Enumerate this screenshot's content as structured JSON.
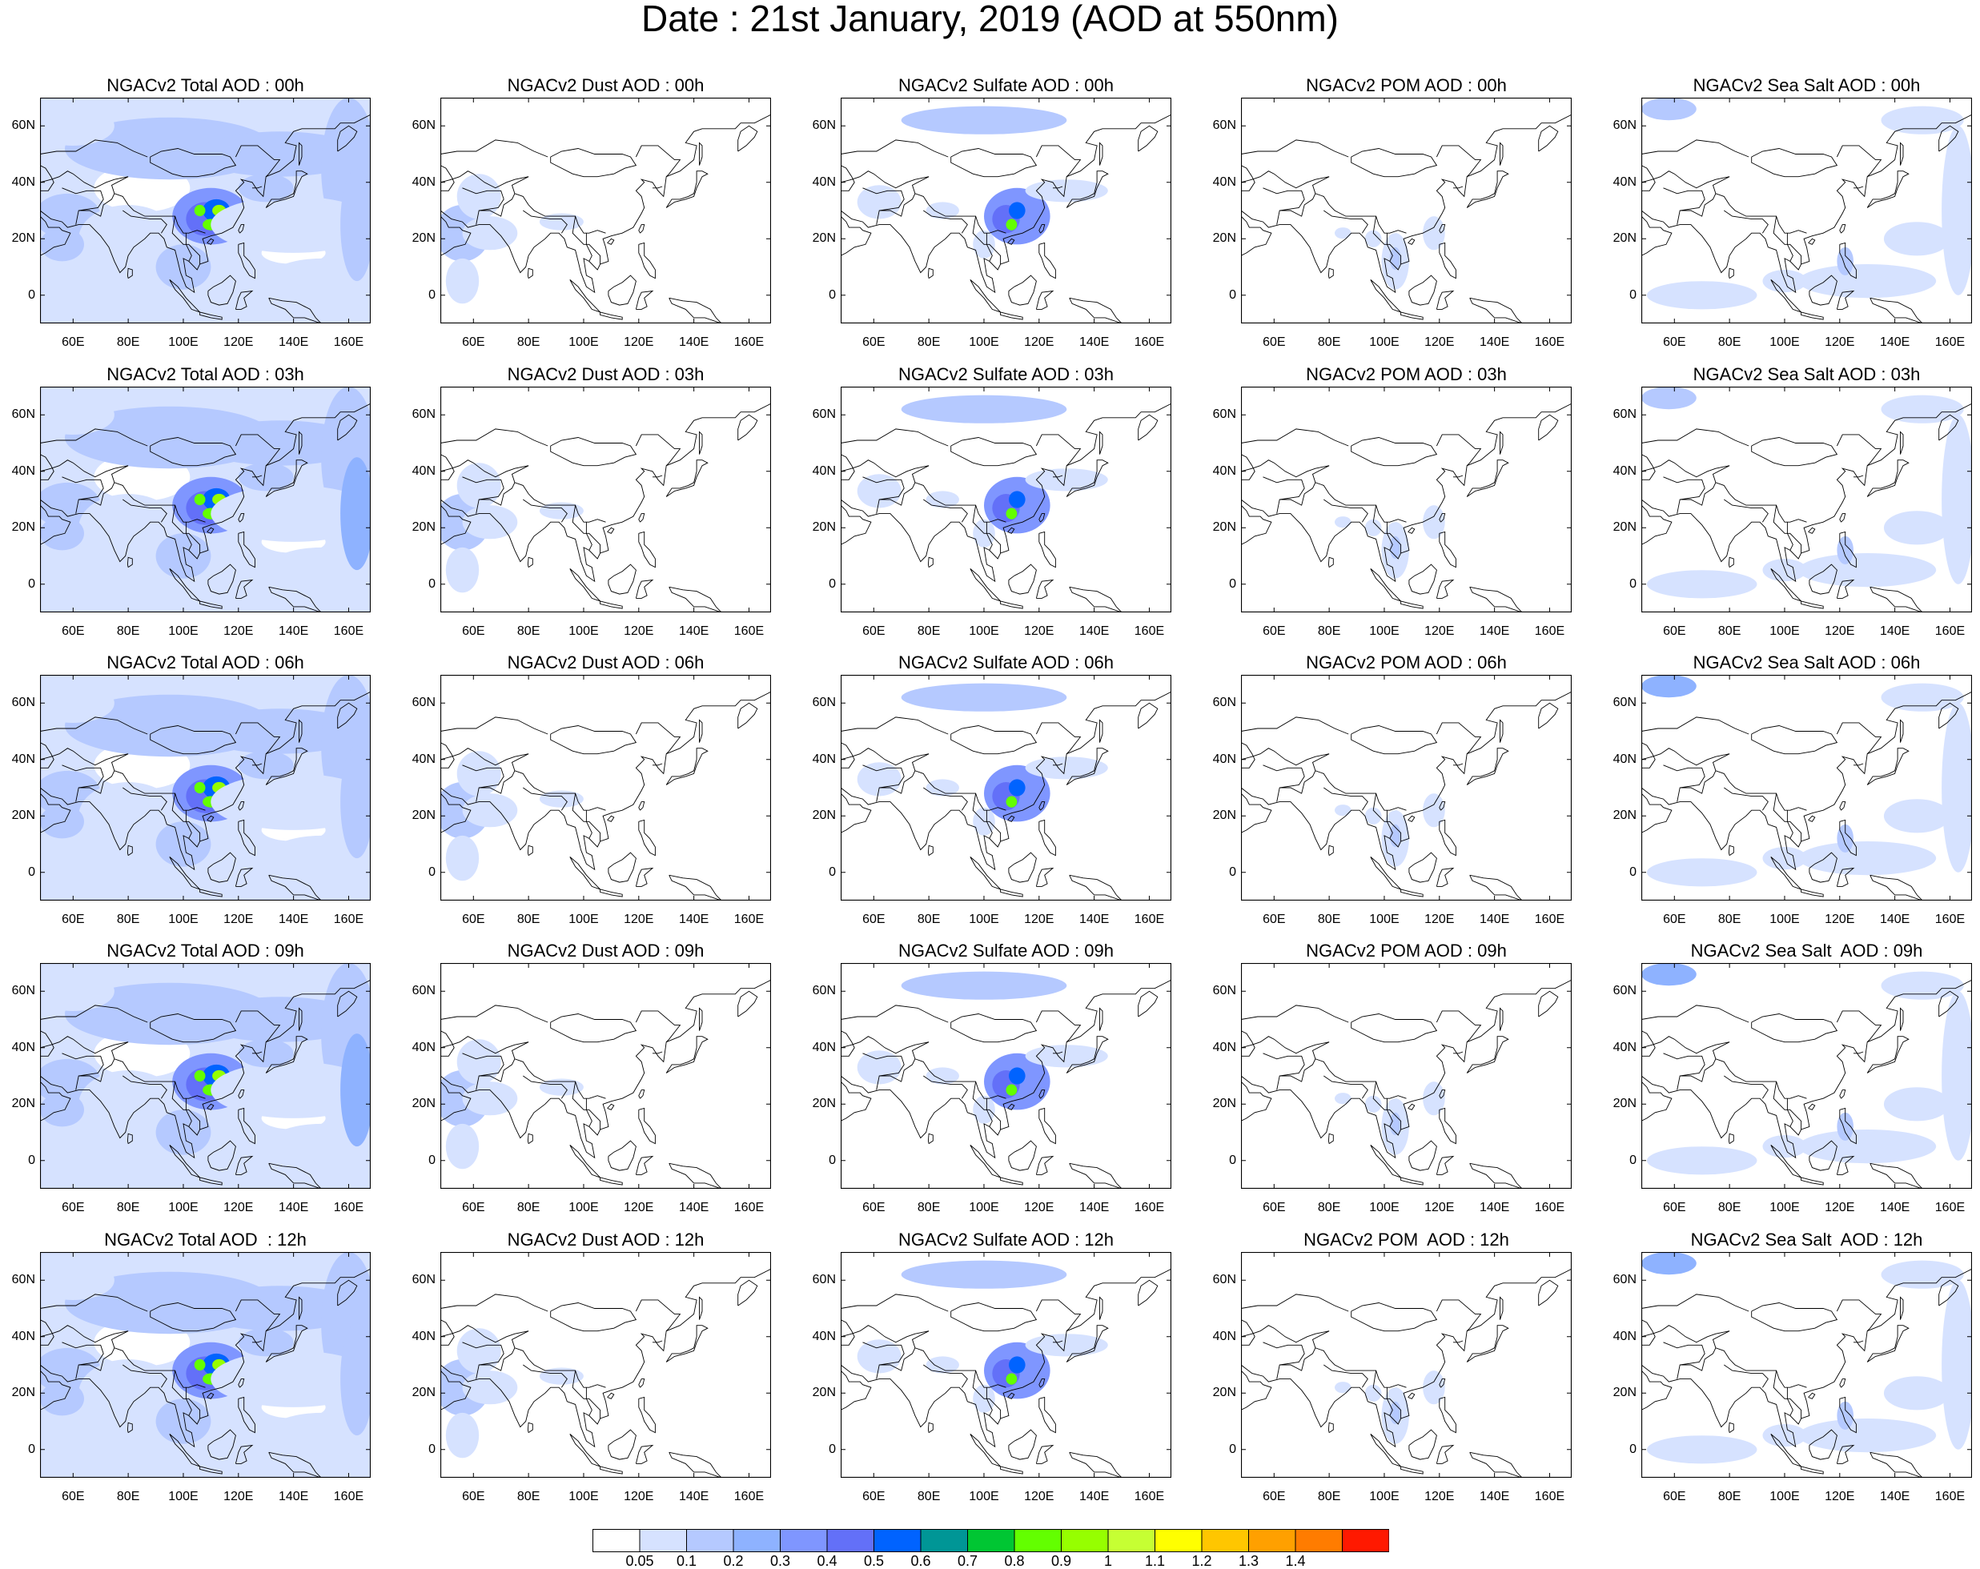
{
  "title": "Date : 21st January, 2019 (AOD at 550nm)",
  "panel_titles": [
    [
      "NGACv2 Total AOD : 00h",
      "NGACv2 Dust AOD : 00h",
      "NGACv2 Sulfate AOD : 00h",
      "NGACv2 POM AOD : 00h",
      "NGACv2 Sea Salt AOD : 00h"
    ],
    [
      "NGACv2 Total AOD : 03h",
      "NGACv2 Dust AOD : 03h",
      "NGACv2 Sulfate AOD : 03h",
      "NGACv2 POM AOD : 03h",
      "NGACv2 Sea Salt AOD : 03h"
    ],
    [
      "NGACv2 Total AOD : 06h",
      "NGACv2 Dust AOD : 06h",
      "NGACv2 Sulfate AOD : 06h",
      "NGACv2 POM AOD : 06h",
      "NGACv2 Sea Salt AOD : 06h"
    ],
    [
      "NGACv2 Total AOD : 09h",
      "NGACv2 Dust AOD : 09h",
      "NGACv2 Sulfate AOD : 09h",
      "NGACv2 POM AOD : 09h",
      "NGACv2 Sea Salt  AOD : 09h"
    ],
    [
      "NGACv2 Total AOD  : 12h",
      "NGACv2 Dust AOD : 12h",
      "NGACv2 Sulfate AOD : 12h",
      "NGACv2 POM  AOD : 12h",
      "NGACv2 Sea Salt  AOD : 12h"
    ]
  ],
  "map_extent": {
    "lon": [
      48,
      168
    ],
    "lat": [
      -10,
      70
    ]
  },
  "lat_ticks": [
    {
      "value": 60,
      "label": "60N"
    },
    {
      "value": 40,
      "label": "40N"
    },
    {
      "value": 20,
      "label": "20N"
    },
    {
      "value": 0,
      "label": "0"
    }
  ],
  "lon_ticks": [
    {
      "value": 60,
      "label": "60E"
    },
    {
      "value": 80,
      "label": "80E"
    },
    {
      "value": 100,
      "label": "100E"
    },
    {
      "value": 120,
      "label": "120E"
    },
    {
      "value": 140,
      "label": "140E"
    },
    {
      "value": 160,
      "label": "160E"
    }
  ],
  "colorbar": {
    "labels": [
      "0.05",
      "0.1",
      "0.2",
      "0.3",
      "0.4",
      "0.5",
      "0.6",
      "0.7",
      "0.8",
      "0.9",
      "1",
      "1.1",
      "1.2",
      "1.3",
      "1.4"
    ],
    "colors": [
      "#ffffff",
      "#d6e2ff",
      "#b5c9ff",
      "#8eb2ff",
      "#7f96ff",
      "#6370f8",
      "#0063ff",
      "#009696",
      "#00c633",
      "#63ff00",
      "#96ff00",
      "#c6ff33",
      "#ffff00",
      "#ffc600",
      "#ffa000",
      "#ff7c00",
      "#ff1900"
    ]
  }
}
